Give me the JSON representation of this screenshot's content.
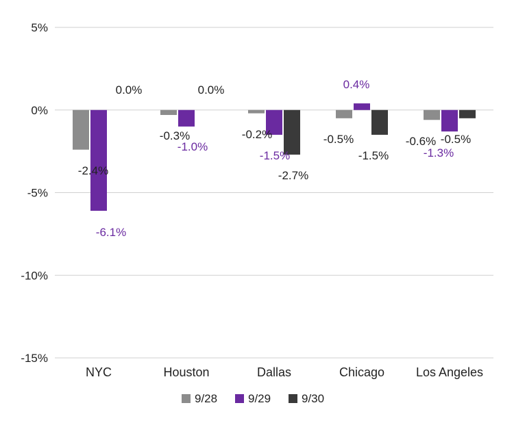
{
  "chart_data": {
    "type": "bar",
    "title": "",
    "xlabel": "",
    "ylabel": "",
    "ylim": [
      -15,
      5
    ],
    "y_ticks": [
      5,
      0,
      -5,
      -10,
      -15
    ],
    "y_tick_labels": [
      "5%",
      "0%",
      "-5%",
      "-10%",
      "-15%"
    ],
    "grid": true,
    "legend_position": "bottom",
    "categories": [
      "NYC",
      "Houston",
      "Dallas",
      "Chicago",
      "Los Angeles"
    ],
    "series": [
      {
        "name": "9/28",
        "color": "#8c8c8c",
        "label_color": "#222222",
        "values": [
          -2.4,
          -0.3,
          -0.2,
          -0.5,
          -0.6
        ],
        "labels": [
          "-2.4%",
          "-0.3%",
          "-0.2%",
          "-0.5%",
          "-0.6%"
        ]
      },
      {
        "name": "9/29",
        "color": "#6a2aa0",
        "label_color": "#6a2aa0",
        "values": [
          -6.1,
          -1.0,
          -1.5,
          0.4,
          -1.3
        ],
        "labels": [
          "-6.1%",
          "-1.0%",
          "-1.5%",
          "0.4%",
          "-1.3%"
        ]
      },
      {
        "name": "9/30",
        "color": "#3a3a3a",
        "label_color": "#222222",
        "values": [
          0.0,
          0.0,
          -2.7,
          -1.5,
          -0.5
        ],
        "labels": [
          "0.0%",
          "0.0%",
          "-2.7%",
          "-1.5%",
          "-0.5%"
        ]
      }
    ]
  }
}
